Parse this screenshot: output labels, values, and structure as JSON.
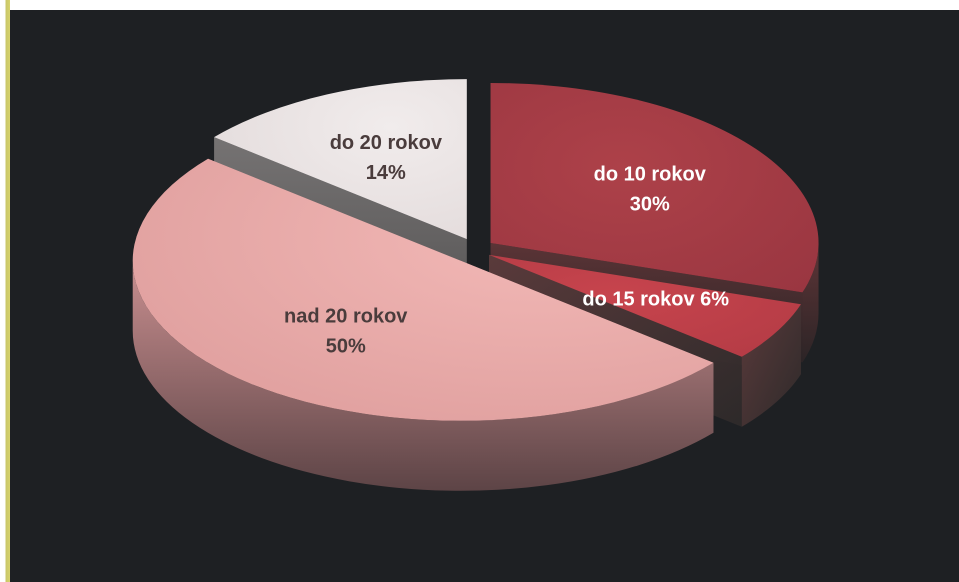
{
  "chart_data": {
    "type": "pie",
    "style": "3d-exploded",
    "slices": [
      {
        "label": "do 10 rokov",
        "value": 30,
        "value_label": "30%",
        "color": "#a63a43"
      },
      {
        "label": "do 15 rokov",
        "value": 6,
        "value_label": "6%",
        "color": "#c2404a"
      },
      {
        "label": "nad 20 rokov",
        "value": 50,
        "value_label": "50%",
        "color": "#e7a8a6"
      },
      {
        "label": "do 20 rokov",
        "value": 14,
        "value_label": "14%",
        "color": "#ece5e4"
      }
    ],
    "background_color": "#1e2023",
    "label_color_light": "#ffffff",
    "label_color_dark": "#4a3c3c"
  }
}
